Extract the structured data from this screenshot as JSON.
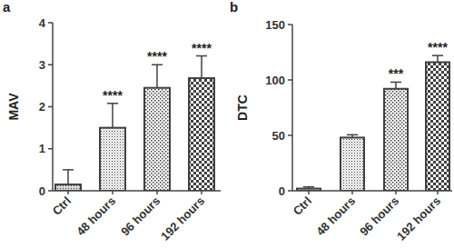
{
  "chart_data": [
    {
      "type": "bar",
      "title": "a",
      "y_label": "MAV",
      "categories": [
        "Ctrl",
        "48 hours",
        "96 hours",
        "192 hours"
      ],
      "values": [
        0.15,
        1.5,
        2.45,
        2.68
      ],
      "errors": [
        0.35,
        0.58,
        0.55,
        0.53
      ],
      "annotations": [
        null,
        "****",
        "****",
        "****"
      ],
      "color": "#404040",
      "ylim": [
        0,
        4
      ],
      "yticks": [
        0,
        1,
        2,
        3,
        4
      ]
    },
    {
      "type": "bar",
      "title": "b",
      "y_label": "DTC",
      "categories": [
        "Ctrl",
        "48 hours",
        "96 hours",
        "192 hours"
      ],
      "values": [
        2,
        48,
        92,
        116
      ],
      "errors": [
        1.5,
        2.5,
        6,
        6
      ],
      "annotations": [
        null,
        null,
        "***",
        "****"
      ],
      "color": "#404040",
      "ylim": [
        0,
        150
      ],
      "yticks": [
        0,
        50,
        100,
        150
      ]
    }
  ]
}
